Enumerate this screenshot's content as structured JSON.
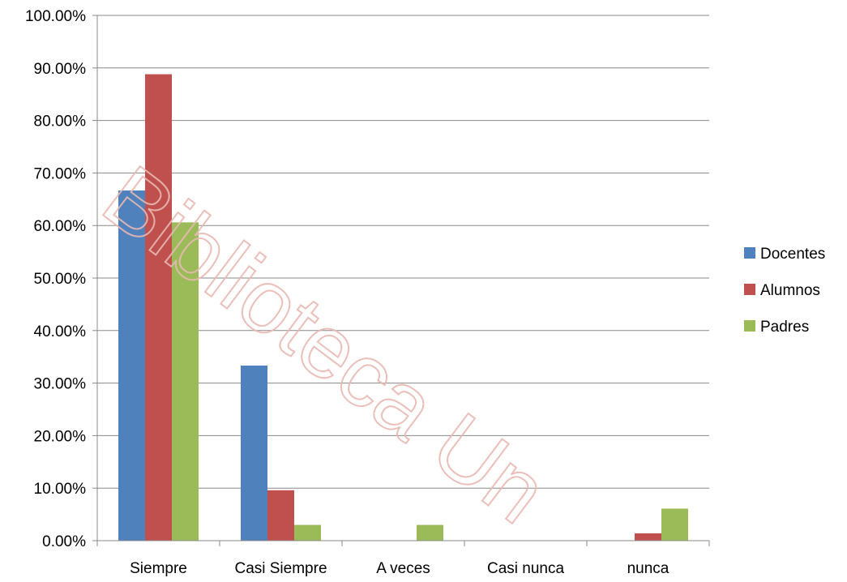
{
  "chart_data": {
    "type": "bar",
    "categories": [
      "Siempre",
      "Casi Siempre",
      "A veces",
      "Casi nunca",
      "nunca"
    ],
    "series": [
      {
        "name": "Docentes",
        "color": "#4f81bd",
        "values": [
          66.67,
          33.33,
          0,
          0,
          0
        ]
      },
      {
        "name": "Alumnos",
        "color": "#c0504d",
        "values": [
          88.8,
          9.6,
          0,
          0,
          1.4
        ]
      },
      {
        "name": "Padres",
        "color": "#9bbb59",
        "values": [
          60.6,
          3.0,
          3.0,
          0,
          6.1
        ]
      }
    ],
    "y_ticks": [
      "0.00%",
      "10.00%",
      "20.00%",
      "30.00%",
      "40.00%",
      "50.00%",
      "60.00%",
      "70.00%",
      "80.00%",
      "90.00%",
      "100.00%"
    ],
    "ylim": [
      0,
      100
    ],
    "grid": true,
    "legend_position": "right"
  },
  "watermark": "Biblioteca Un"
}
